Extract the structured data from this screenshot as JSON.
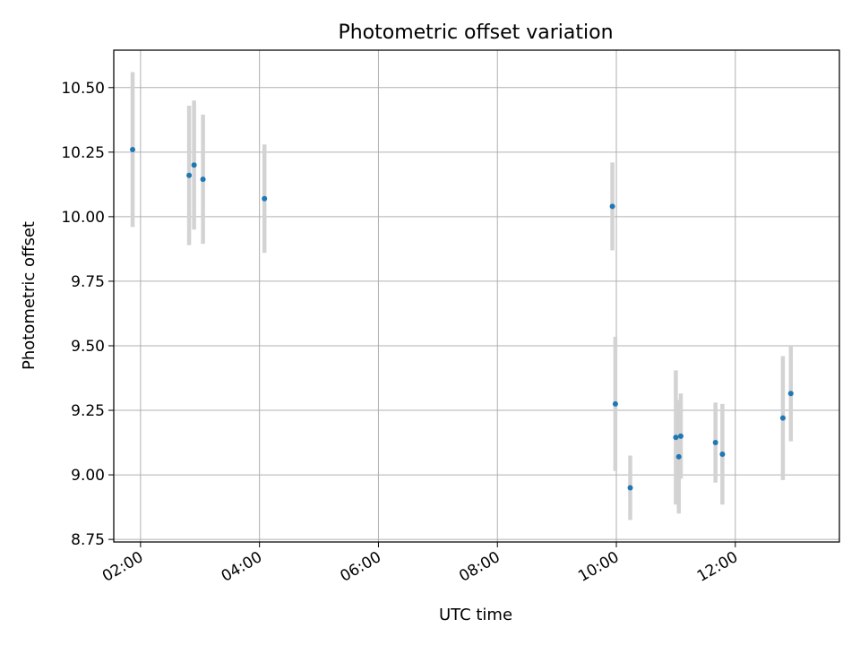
{
  "chart_data": {
    "type": "scatter",
    "title": "Photometric offset variation",
    "xlabel": "UTC time",
    "ylabel": "Photometric offset",
    "xlim": [
      "01:33",
      "13:45"
    ],
    "ylim": [
      8.74,
      10.645
    ],
    "x_ticks": [
      "02:00",
      "04:00",
      "06:00",
      "08:00",
      "10:00",
      "12:00"
    ],
    "y_ticks": [
      "8.75",
      "9.00",
      "9.25",
      "9.50",
      "9.75",
      "10.00",
      "10.25",
      "10.50"
    ],
    "grid": true,
    "colors": {
      "points": "#1f77b4",
      "errorbars": "#d3d3d3",
      "grid": "#b0b0b0",
      "axes": "#000000"
    },
    "series": [
      {
        "points": [
          {
            "x": "01:52",
            "y": 10.26,
            "yerr": 0.3
          },
          {
            "x": "02:49",
            "y": 10.16,
            "yerr": 0.27
          },
          {
            "x": "02:54",
            "y": 10.2,
            "yerr": 0.25
          },
          {
            "x": "03:03",
            "y": 10.145,
            "yerr": 0.25
          },
          {
            "x": "04:05",
            "y": 10.07,
            "yerr": 0.21
          },
          {
            "x": "09:56",
            "y": 10.04,
            "yerr": 0.17
          },
          {
            "x": "09:59",
            "y": 9.275,
            "yerr": 0.26
          },
          {
            "x": "10:14",
            "y": 8.95,
            "yerr": 0.125
          },
          {
            "x": "11:00",
            "y": 9.145,
            "yerr": 0.26
          },
          {
            "x": "11:03",
            "y": 9.07,
            "yerr": 0.22
          },
          {
            "x": "11:05",
            "y": 9.15,
            "yerr": 0.165
          },
          {
            "x": "11:40",
            "y": 9.125,
            "yerr": 0.155
          },
          {
            "x": "11:47",
            "y": 9.08,
            "yerr": 0.195
          },
          {
            "x": "12:48",
            "y": 9.22,
            "yerr": 0.24
          },
          {
            "x": "12:56",
            "y": 9.315,
            "yerr": 0.185
          }
        ]
      }
    ]
  }
}
